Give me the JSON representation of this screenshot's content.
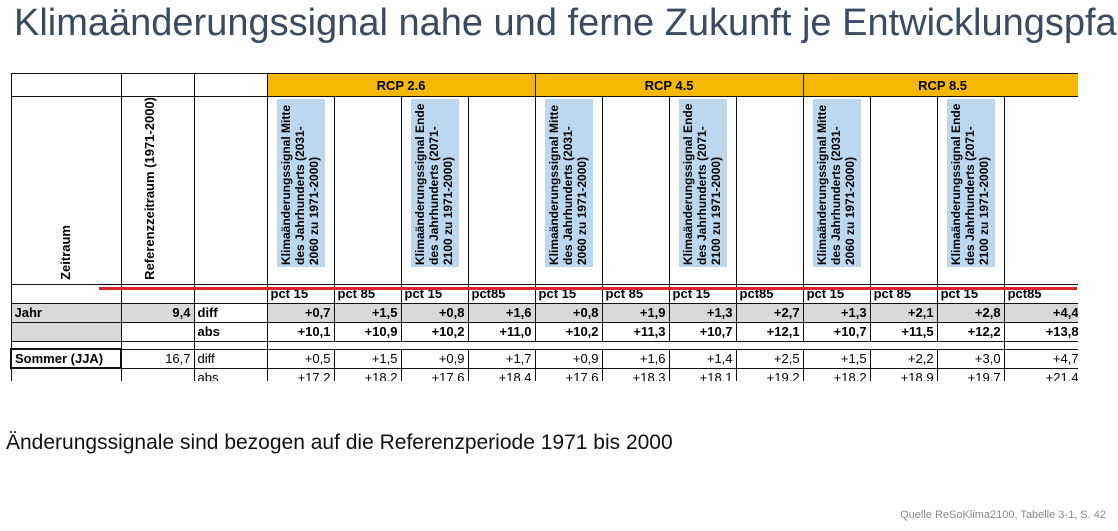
{
  "title": "Klimaänderungssignal nahe und ferne Zukunft je Entwicklungspfad",
  "table": {
    "row_header": "Zeitraum",
    "ref_header": "Referenzzeitraum (1971-2000)",
    "rcps": [
      "RCP 2.6",
      "RCP 4.5",
      "RCP 8.5"
    ],
    "signal_mid": "Klimaänderungssignal Mitte des Jahrhunderts (2031-2060 zu 1971-2000)",
    "signal_end": "Klimaänderungssignal Ende des Jahrhunderts (2071-2100 zu 1971-2000)",
    "pct_labels": [
      "pct 15",
      "pct 85",
      "pct 15",
      "pct85",
      "pct 15",
      "pct 85",
      "pct 15",
      "pct85",
      "pct 15",
      "pct 85",
      "pct 15",
      "pct85"
    ],
    "rows": [
      {
        "label": "Jahr",
        "ref": "9,4",
        "type": "diff",
        "values": [
          "+0,7",
          "+1,5",
          "+0,8",
          "+1,6",
          "+0,8",
          "+1,9",
          "+1,3",
          "+2,7",
          "+1,3",
          "+2,1",
          "+2,8",
          "+4,4"
        ]
      },
      {
        "label": "",
        "ref": "",
        "type": "abs",
        "values": [
          "+10,1",
          "+10,9",
          "+10,2",
          "+11,0",
          "+10,2",
          "+11,3",
          "+10,7",
          "+12,1",
          "+10,7",
          "+11,5",
          "+12,2",
          "+13,8"
        ]
      },
      {
        "label": "Sommer (JJA)",
        "ref": "16,7",
        "type": "diff",
        "values": [
          "+0,5",
          "+1,5",
          "+0,9",
          "+1,7",
          "+0,9",
          "+1,6",
          "+1,4",
          "+2,5",
          "+1,5",
          "+2,2",
          "+3,0",
          "+4,7"
        ]
      },
      {
        "label": "",
        "ref": "",
        "type": "abs",
        "values": [
          "+17,2",
          "+18,2",
          "+17,6",
          "+18,4",
          "+17,6",
          "+18,3",
          "+18,1",
          "+19,2",
          "+18,2",
          "+18,9",
          "+19,7",
          "+21,4"
        ]
      }
    ]
  },
  "caption": "Änderungssignale sind bezogen auf die Referenzperiode 1971 bis 2000",
  "source": "Quelle ReSoKlima2100, Tabelle 3-1, S. 42"
}
